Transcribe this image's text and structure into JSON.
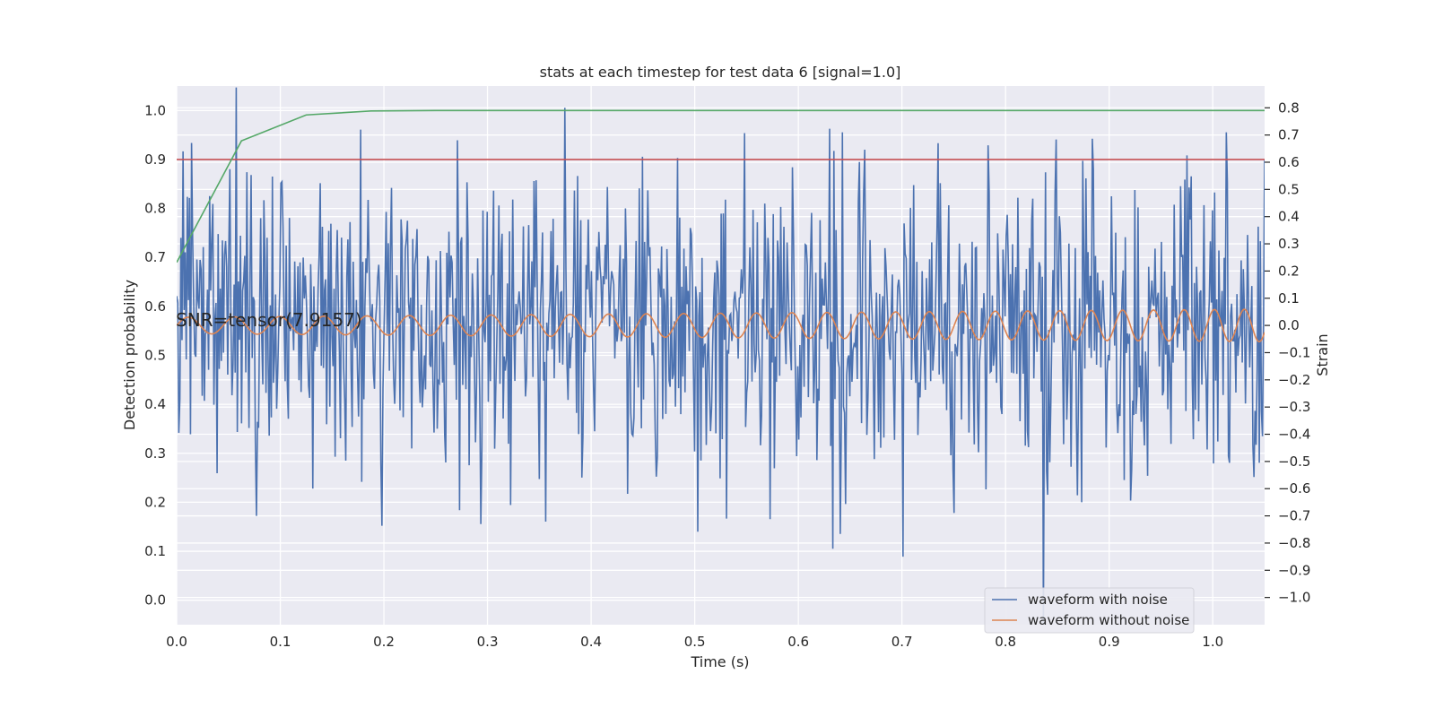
{
  "chart_data": {
    "type": "line",
    "title": "stats at each timestep for test data 6 [signal=1.0]",
    "xlabel": "Time (s)",
    "ylabel": "Detection probability",
    "y2label": "Strain",
    "xlim": [
      0.0,
      1.05
    ],
    "ylim": [
      -0.05,
      1.05
    ],
    "y2lim": [
      -1.1,
      0.88
    ],
    "x_ticks": [
      "0.0",
      "0.1",
      "0.2",
      "0.3",
      "0.4",
      "0.5",
      "0.6",
      "0.7",
      "0.8",
      "0.9",
      "1.0"
    ],
    "y_ticks": [
      "0.0",
      "0.1",
      "0.2",
      "0.3",
      "0.4",
      "0.5",
      "0.6",
      "0.7",
      "0.8",
      "0.9",
      "1.0"
    ],
    "y2_ticks": [
      "0.8",
      "0.7",
      "0.6",
      "0.5",
      "0.4",
      "0.3",
      "0.2",
      "0.1",
      "0.0",
      "−0.1",
      "−0.2",
      "−0.3",
      "−0.4",
      "−0.5",
      "−0.6",
      "−0.7",
      "−0.8",
      "−0.9",
      "−1.0"
    ],
    "annotation": "SNR=tensor(7.9157)",
    "legend": {
      "location": "lower-right",
      "entries": [
        {
          "label": "waveform with noise",
          "color": "#4c72b0"
        },
        {
          "label": "waveform without noise",
          "color": "#dd8452"
        }
      ]
    },
    "detection_probability": {
      "color": "#55a868",
      "x": [
        0.0,
        0.0625,
        0.125,
        0.1875,
        0.25,
        0.3125,
        1.05
      ],
      "y": [
        0.69,
        0.938,
        0.991,
        0.999,
        1.0,
        1.0,
        1.0
      ]
    },
    "threshold": {
      "y": 0.9,
      "color": "#c44e52"
    },
    "waveform_without_noise": {
      "axis": "right",
      "color": "#dd8452",
      "approx_frequency_start_hz": 22,
      "approx_frequency_end_hz": 35,
      "amplitude_start": 0.03,
      "amplitude_end": 0.06
    },
    "waveform_with_noise": {
      "axis": "right",
      "color": "#4c72b0",
      "approx_std": 0.27,
      "notable_points": [
        {
          "x": 0.006,
          "y": 0.64
        },
        {
          "x": 0.0765,
          "y": -0.7
        },
        {
          "x": 0.178,
          "y": 0.72
        },
        {
          "x": 0.294,
          "y": -0.73
        },
        {
          "x": 0.375,
          "y": 0.8
        },
        {
          "x": 0.531,
          "y": -0.71
        },
        {
          "x": 0.643,
          "y": 0.71
        },
        {
          "x": 0.701,
          "y": -0.85
        },
        {
          "x": 0.735,
          "y": 0.67
        },
        {
          "x": 0.836,
          "y": -1.1
        },
        {
          "x": 1.0135,
          "y": 0.71
        }
      ]
    }
  }
}
